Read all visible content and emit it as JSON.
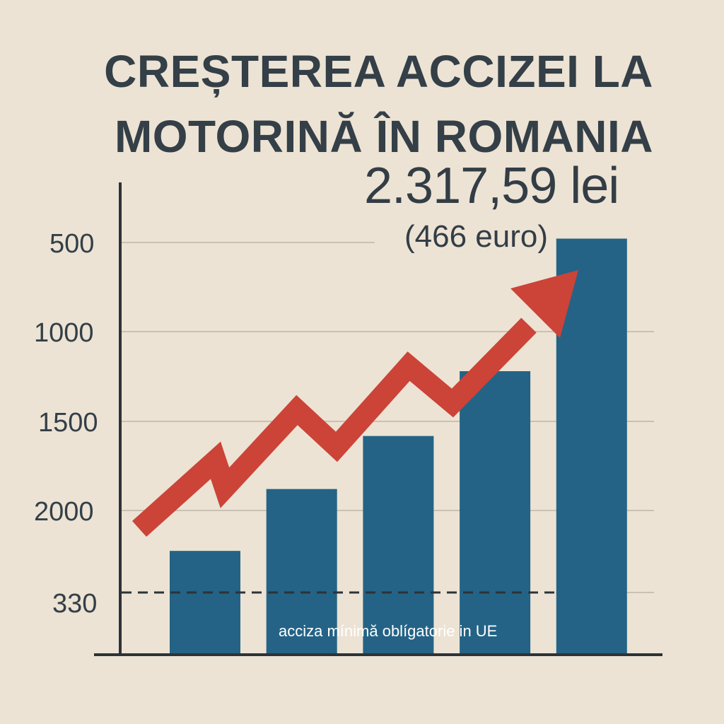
{
  "chart_data": {
    "type": "bar",
    "title_lines": [
      "CREȘTEREA ACCIZEI LA",
      "MOTORINĂ ÎN ROMANIA"
    ],
    "headline_value": "2.317,59 lei",
    "headline_sub": "(466 euro)",
    "y_ticks": [
      "500",
      "1000",
      "1500",
      "2000",
      "330"
    ],
    "categories": [
      "",
      "",
      "",
      "",
      ""
    ],
    "values": [
      350,
      560,
      740,
      960,
      1410
    ],
    "ylim": [
      0,
      1500
    ],
    "reference_line": {
      "value": 330,
      "label": "acciza mínimă oblígatorie in UE"
    },
    "trend_arrow": true,
    "grid": true,
    "colors": {
      "bar": "#246385",
      "arrow": "#cc4338",
      "text": "#343f47",
      "background": "#ece3d4",
      "grid": "#c9c1b4"
    }
  }
}
